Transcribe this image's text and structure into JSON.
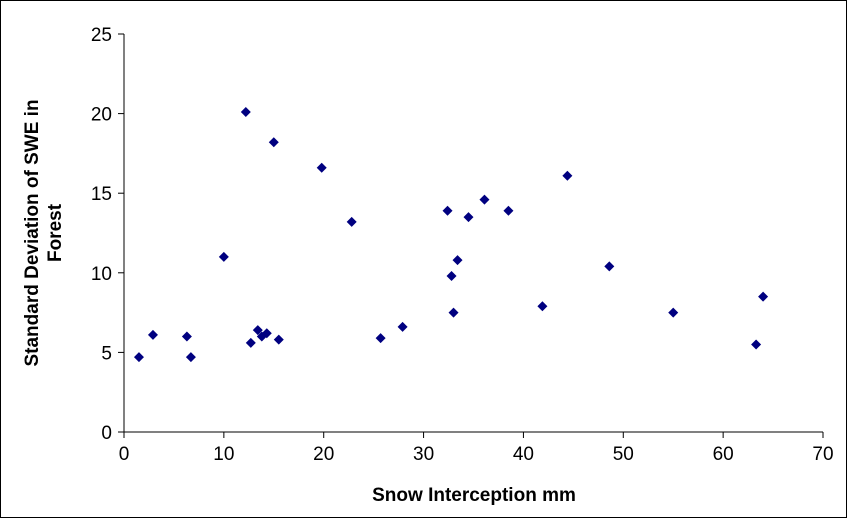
{
  "chart_data": {
    "type": "scatter",
    "title": "",
    "xlabel": "Snow Interception mm",
    "ylabel_lines": [
      "Standard Deviation of SWE in",
      "Forest"
    ],
    "xlim": [
      0,
      70
    ],
    "ylim": [
      0,
      25
    ],
    "x_ticks": [
      "0",
      "10",
      "20",
      "30",
      "40",
      "50",
      "60",
      "70"
    ],
    "y_ticks": [
      "0",
      "5",
      "10",
      "15",
      "20",
      "25"
    ],
    "grid": false,
    "legend": "none",
    "marker": "diamond",
    "marker_color": "#000080",
    "series": [
      {
        "points": [
          [
            1.5,
            4.7
          ],
          [
            2.9,
            6.1
          ],
          [
            6.3,
            6.0
          ],
          [
            6.7,
            4.7
          ],
          [
            10.0,
            11.0
          ],
          [
            12.2,
            20.1
          ],
          [
            12.7,
            5.6
          ],
          [
            13.4,
            6.4
          ],
          [
            13.8,
            6.0
          ],
          [
            14.3,
            6.2
          ],
          [
            15.0,
            18.2
          ],
          [
            15.5,
            5.8
          ],
          [
            19.8,
            16.6
          ],
          [
            22.8,
            13.2
          ],
          [
            25.7,
            5.9
          ],
          [
            27.9,
            6.6
          ],
          [
            32.4,
            13.9
          ],
          [
            32.8,
            9.8
          ],
          [
            33.0,
            7.5
          ],
          [
            33.4,
            10.8
          ],
          [
            34.5,
            13.5
          ],
          [
            36.1,
            14.6
          ],
          [
            38.5,
            13.9
          ],
          [
            41.9,
            7.9
          ],
          [
            44.4,
            16.1
          ],
          [
            48.6,
            10.4
          ],
          [
            55.0,
            7.5
          ],
          [
            63.3,
            5.5
          ],
          [
            64.0,
            8.5
          ]
        ]
      }
    ]
  }
}
